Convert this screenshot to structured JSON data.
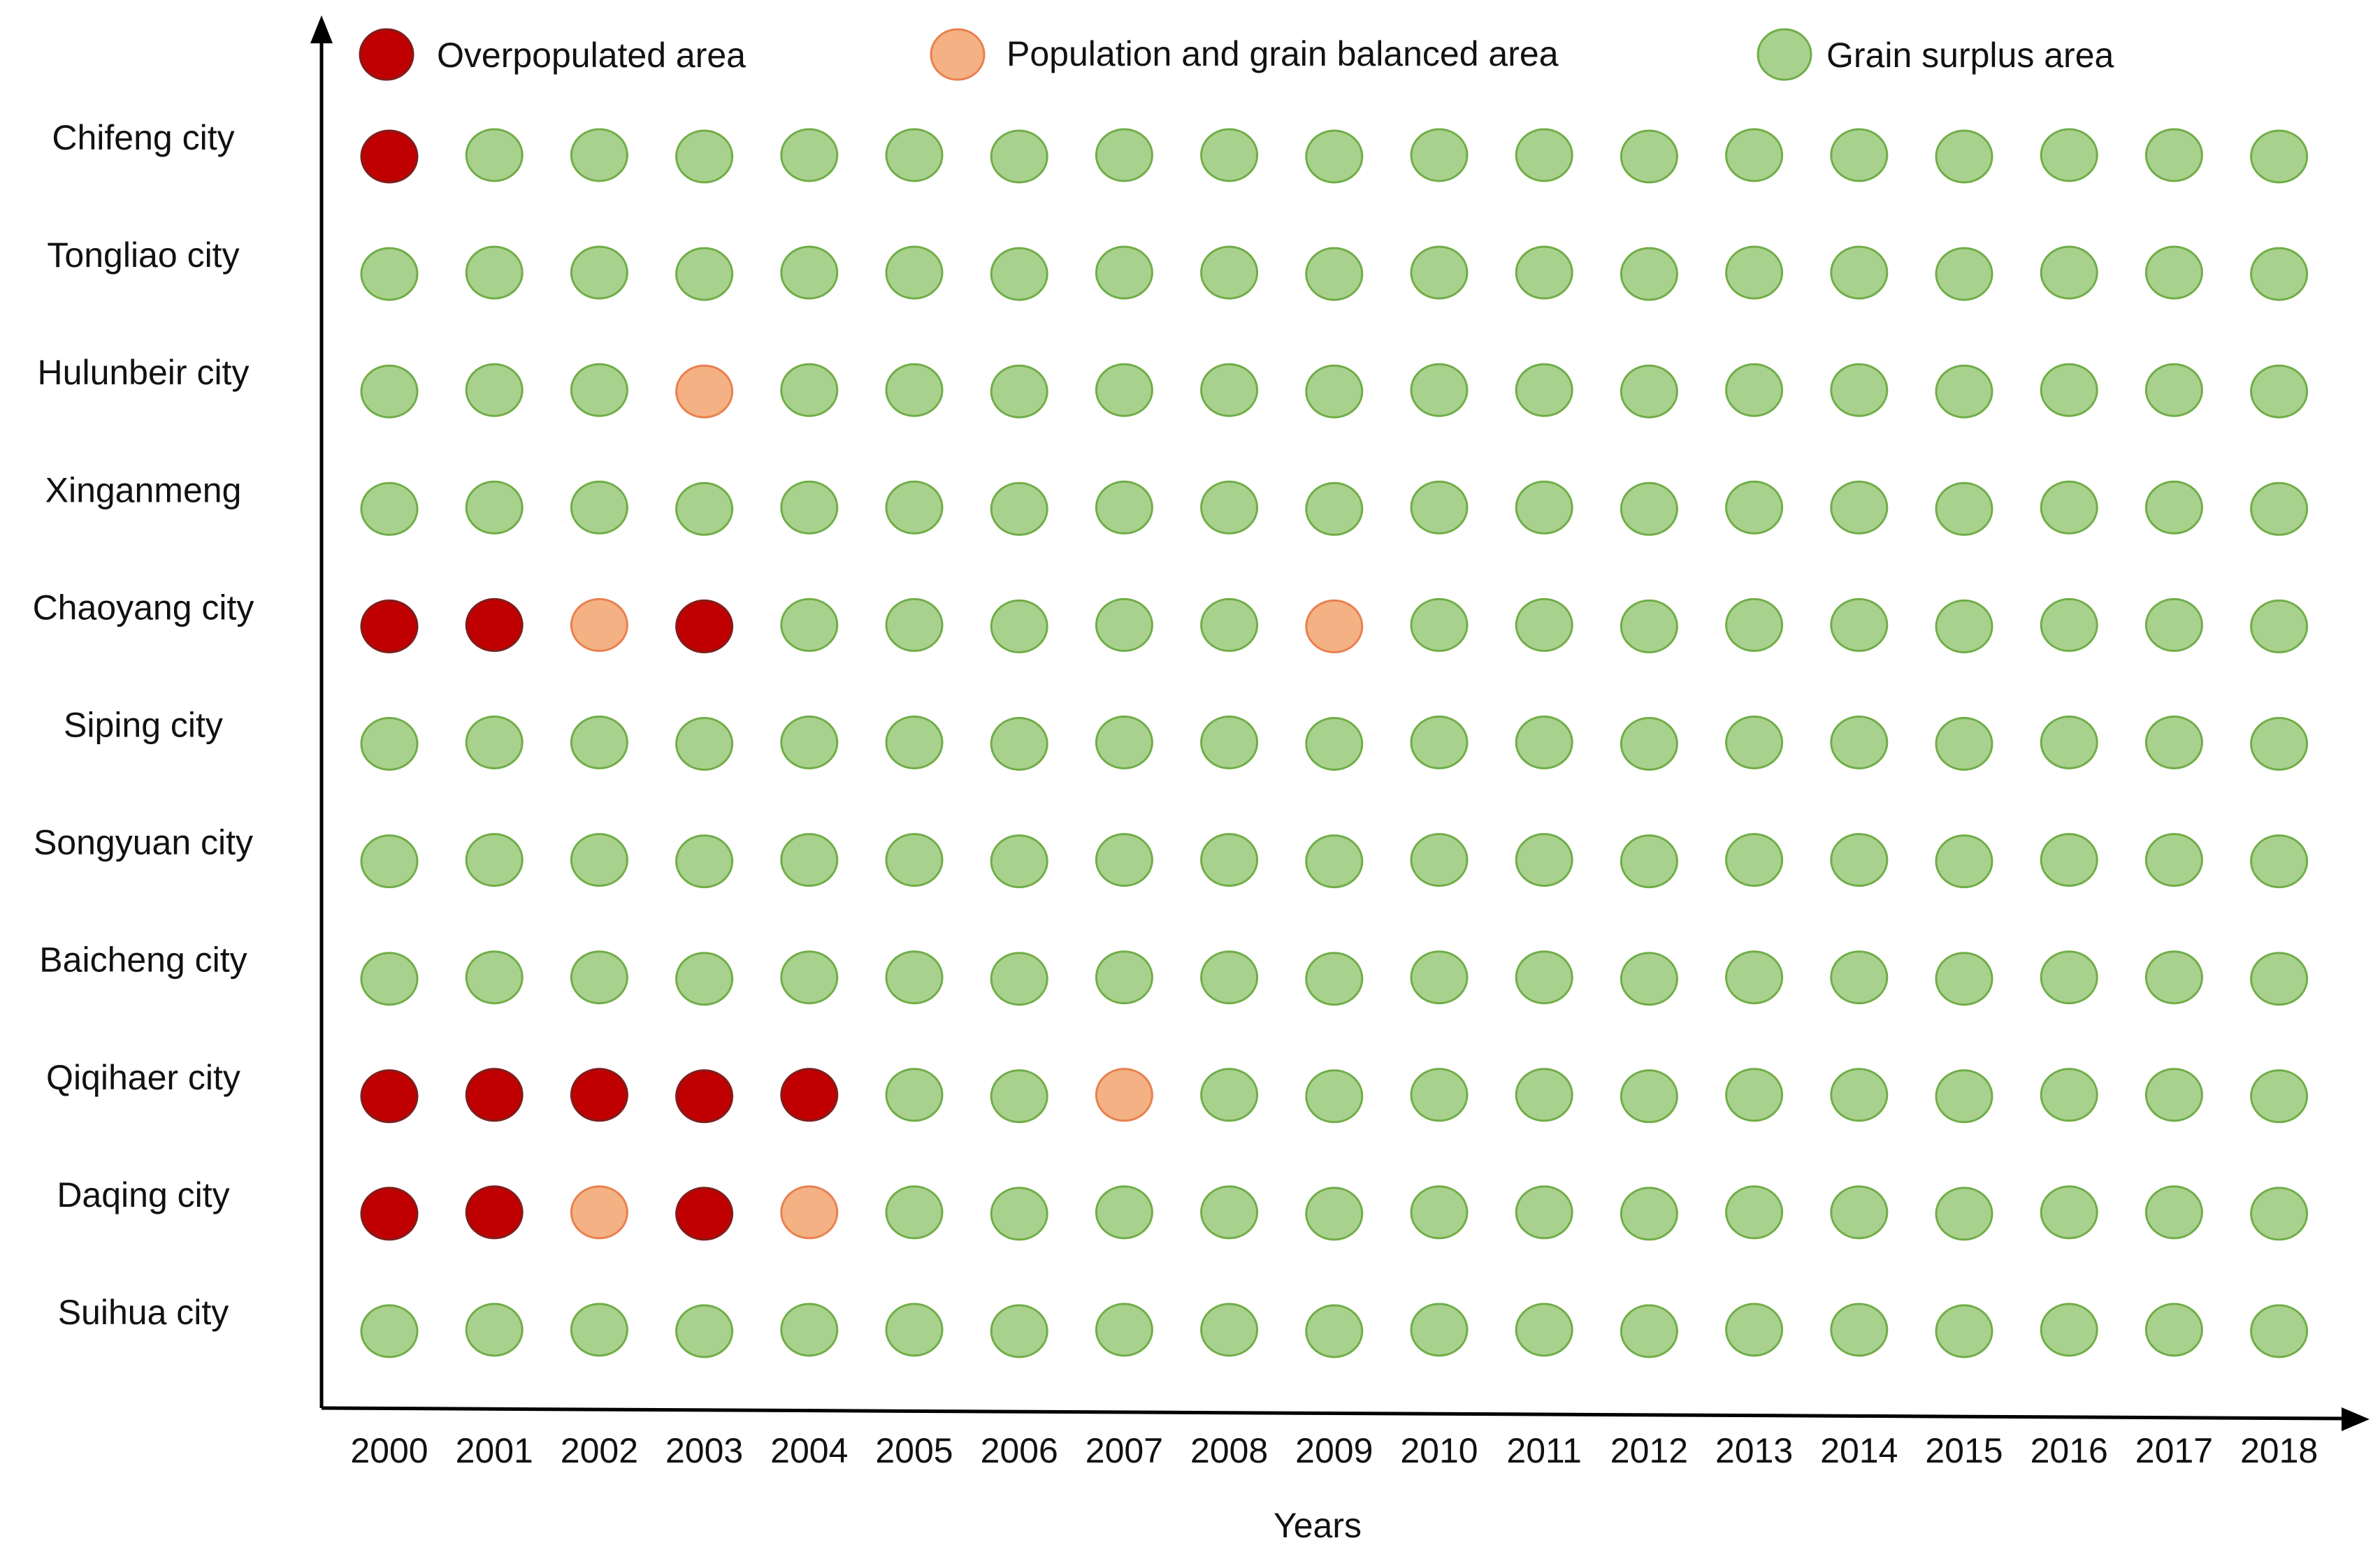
{
  "chart_data": {
    "type": "scatter",
    "title": "",
    "xlabel": "Years",
    "ylabel": "",
    "legend_position": "top",
    "categories_x": [
      "2000",
      "2001",
      "2002",
      "2003",
      "2004",
      "2005",
      "2006",
      "2007",
      "2008",
      "2009",
      "2010",
      "2011",
      "2012",
      "2013",
      "2014",
      "2015",
      "2016",
      "2017",
      "2018"
    ],
    "categories_y": [
      "Chifeng city",
      "Tongliao city",
      "Hulunbeir city",
      "Xinganmeng",
      "Chaoyang city",
      "Siping city",
      "Songyuan city",
      "Baicheng city",
      "Qiqihaer city",
      "Daqing city",
      "Suihua city"
    ],
    "legend": [
      {
        "key": "O",
        "label": "Overpopulated area",
        "fill": "#c00000",
        "stroke": "#7f1d1d"
      },
      {
        "key": "B",
        "label": "Population and grain balanced area",
        "fill": "#f4b183",
        "stroke": "#e8804f"
      },
      {
        "key": "S",
        "label": "Grain surplus area",
        "fill": "#a9d18e",
        "stroke": "#70ad47"
      }
    ],
    "status_grid": [
      "OSSSSSSSSSSSSSSSSSS",
      "SSSSSSSSSSSSSSSSSSS",
      "SSSBSSSSSSSSSSSSSSS",
      "SSSSSSSSSSSSSSSSSSS",
      "OOBOSSSSSBSSSSSSSSS",
      "SSSSSSSSSSSSSSSSSSS",
      "SSSSSSSSSSSSSSSSSSS",
      "SSSSSSSSSSSSSSSSSSS",
      "OOOOOSSBSSSSSSSSSSS",
      "OOBOBSSSSSSSSSSSSSS",
      "SSSSSSSSSSSSSSSSSSS"
    ]
  }
}
